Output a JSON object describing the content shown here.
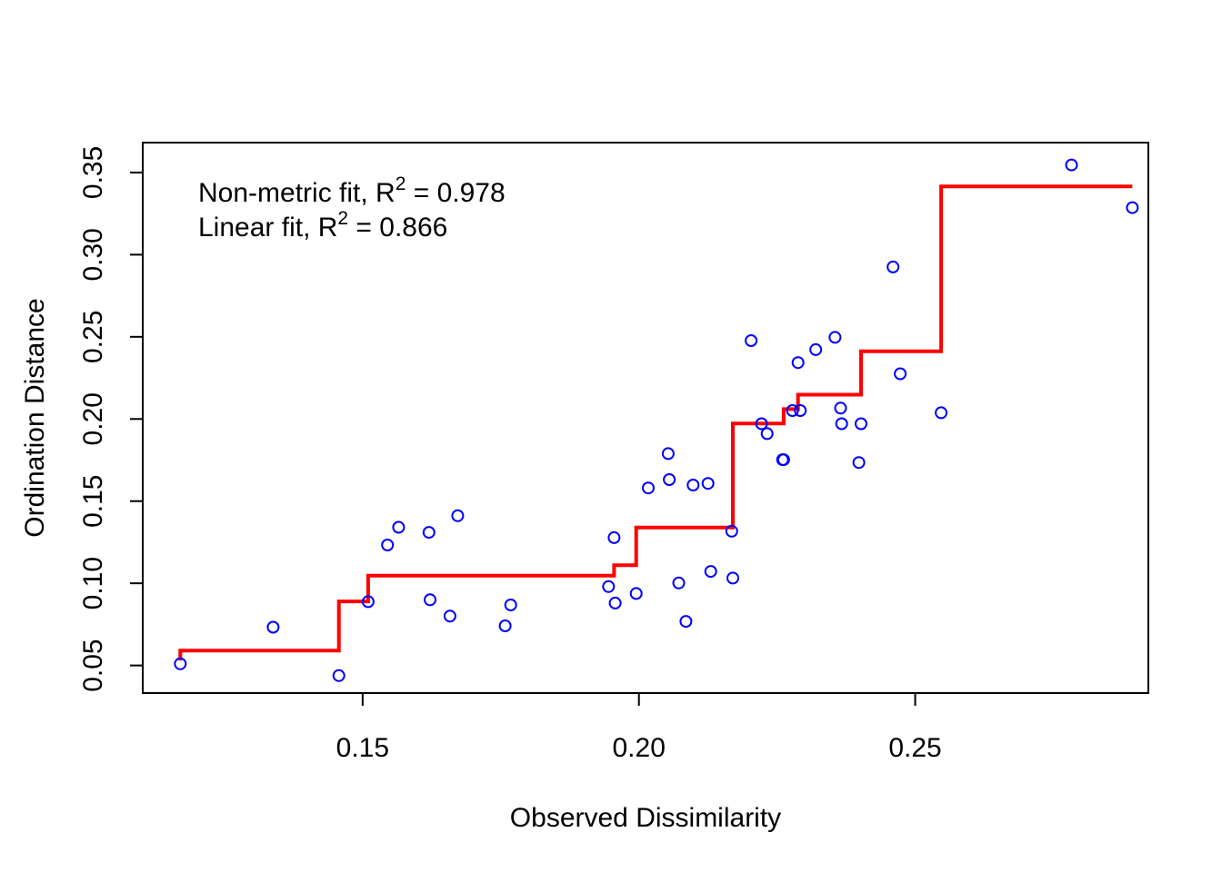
{
  "chart_data": {
    "type": "scatter",
    "title": "",
    "xlabel": "Observed Dissimilarity",
    "ylabel": "Ordination Distance",
    "xlim": [
      0.1102,
      0.2922
    ],
    "ylim": [
      0.0332,
      0.3682
    ],
    "x_ticks": [
      0.15,
      0.2,
      0.25
    ],
    "x_tick_labels": [
      "0.15",
      "0.20",
      "0.25"
    ],
    "y_ticks": [
      0.05,
      0.1,
      0.15,
      0.2,
      0.25,
      0.3,
      0.35
    ],
    "y_tick_labels": [
      "0.05",
      "0.10",
      "0.15",
      "0.20",
      "0.25",
      "0.30",
      "0.35"
    ],
    "grid": false,
    "legend": {
      "position": "top-left",
      "entries": [
        {
          "prefix": "Non-metric fit, R",
          "sup": "2",
          "suffix": " = 0.978"
        },
        {
          "prefix": "Linear fit, R",
          "sup": "2",
          "suffix": " = 0.866"
        }
      ]
    },
    "series": [
      {
        "name": "points",
        "kind": "scatter",
        "color": "#0000FF",
        "x": [
          0.117,
          0.1338,
          0.1457,
          0.151,
          0.1545,
          0.1565,
          0.162,
          0.1622,
          0.1658,
          0.1672,
          0.1758,
          0.1768,
          0.1945,
          0.1955,
          0.1957,
          0.1995,
          0.2017,
          0.2053,
          0.2055,
          0.2072,
          0.2085,
          0.2098,
          0.2125,
          0.213,
          0.2168,
          0.217,
          0.2203,
          0.2222,
          0.2232,
          0.226,
          0.2262,
          0.2278,
          0.2288,
          0.2292,
          0.232,
          0.2355,
          0.2365,
          0.2367,
          0.2398,
          0.2402,
          0.246,
          0.2473,
          0.2547,
          0.2783,
          0.2893
        ],
        "y": [
          0.051,
          0.0733,
          0.0438,
          0.0888,
          0.1233,
          0.1341,
          0.131,
          0.09,
          0.08,
          0.1411,
          0.0741,
          0.0868,
          0.098,
          0.1278,
          0.088,
          0.0938,
          0.158,
          0.1789,
          0.1631,
          0.1002,
          0.0768,
          0.1598,
          0.1608,
          0.1072,
          0.1317,
          0.1032,
          0.2477,
          0.1971,
          0.1911,
          0.1752,
          0.1752,
          0.2051,
          0.2343,
          0.2051,
          0.2422,
          0.2497,
          0.2066,
          0.1971,
          0.1735,
          0.1971,
          0.2925,
          0.2275,
          0.2038,
          0.3546,
          0.3286
        ]
      },
      {
        "name": "Non-metric fit (step)",
        "kind": "step",
        "color": "#FF0000",
        "x": [
          0.117,
          0.117,
          0.1457,
          0.1457,
          0.151,
          0.151,
          0.1955,
          0.1955,
          0.1995,
          0.1995,
          0.217,
          0.217,
          0.2262,
          0.2262,
          0.2288,
          0.2288,
          0.2402,
          0.2402,
          0.2547,
          0.2547,
          0.2893
        ],
        "y": [
          0.053,
          0.059,
          0.059,
          0.089,
          0.089,
          0.1047,
          0.1047,
          0.111,
          0.111,
          0.134,
          0.134,
          0.1972,
          0.1972,
          0.206,
          0.206,
          0.2148,
          0.2148,
          0.2412,
          0.2412,
          0.3415,
          0.3415
        ]
      }
    ]
  }
}
